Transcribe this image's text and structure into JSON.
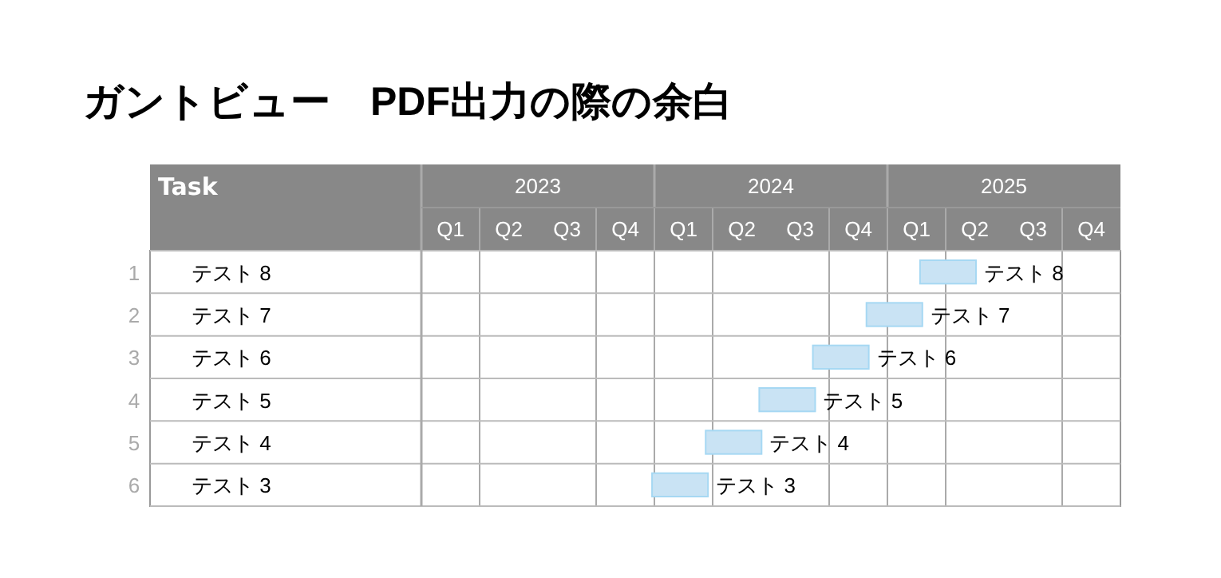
{
  "chart_data": {
    "type": "bar",
    "orientation": "horizontal",
    "title": "ガントビュー　PDF出力の際の余白",
    "ylabel": "Task",
    "categories": [
      "テスト 8",
      "テスト 7",
      "テスト 6",
      "テスト 5",
      "テスト 4",
      "テスト 3"
    ],
    "base": [
      2025.14,
      2024.91,
      2024.68,
      2024.45,
      2024.22,
      2023.99
    ],
    "values": [
      0.24,
      0.24,
      0.24,
      0.24,
      0.24,
      0.24
    ],
    "color": "#c9e3f4",
    "annotations": [
      "Q1",
      "Q2",
      "Q3",
      "Q4",
      "Q1",
      "Q2",
      "Q3",
      "Q4",
      "Q1",
      "Q2",
      "Q3",
      "Q4",
      "1",
      "2",
      "3",
      "4",
      "5",
      "6",
      {
        "text": "テスト 8",
        "x": 2025.38,
        "y": "テスト 8"
      },
      {
        "text": "テスト 7",
        "x": 2025.15,
        "y": "テスト 7"
      },
      {
        "text": "テスト 6",
        "x": 2024.92,
        "y": "テスト 6"
      },
      {
        "text": "テスト 5",
        "x": 2024.69,
        "y": "テスト 5"
      },
      {
        "text": "テスト 4",
        "x": 2024.46,
        "y": "テスト 4"
      },
      {
        "text": "テスト 3",
        "x": 2024.23,
        "y": "テスト 3"
      }
    ],
    "xlim": [
      2023,
      2026
    ],
    "xticks": [
      {
        "value": 2023.25,
        "label": null
      },
      {
        "value": 2023.5,
        "label": "2023"
      },
      {
        "value": 2023.75,
        "label": null
      },
      {
        "value": 2024,
        "label": null
      },
      {
        "value": 2024.25,
        "label": null
      },
      {
        "value": 2024.5,
        "label": "2024"
      },
      {
        "value": 2024.75,
        "label": null
      },
      {
        "value": 2025,
        "label": null
      },
      {
        "value": 2025.25,
        "label": null
      },
      {
        "value": 2025.5,
        "label": "2025"
      },
      {
        "value": 2025.75,
        "label": null
      }
    ],
    "grid": true
  }
}
